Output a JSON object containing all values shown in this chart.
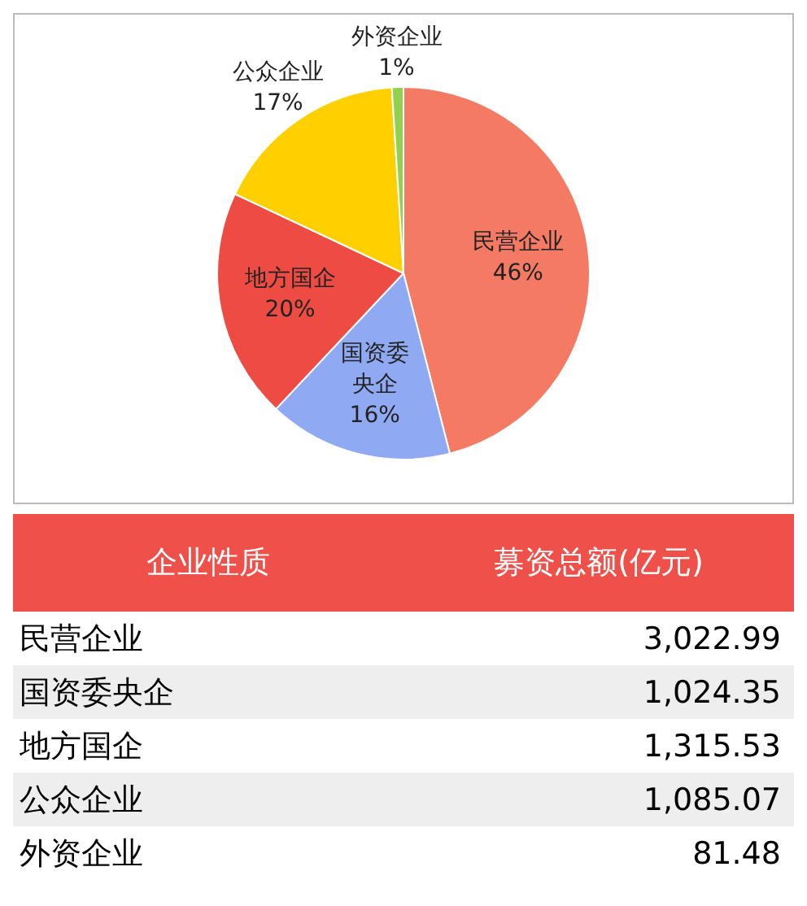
{
  "chart_data": [
    {
      "type": "pie",
      "categories": [
        "民营企业",
        "国资委央企",
        "地方国企",
        "公众企业",
        "外资企业"
      ],
      "values": [
        46,
        16,
        20,
        17,
        1
      ],
      "value_labels": [
        "46%",
        "16%",
        "20%",
        "17%",
        "1%"
      ],
      "colors": [
        "#f47a63",
        "#8faaf2",
        "#ee4b43",
        "#ffd000",
        "#92d050"
      ],
      "data_labels": true,
      "legend": false
    },
    {
      "type": "other",
      "categories": [
        "民营企业",
        "国资委央企",
        "地方国企",
        "公众企业",
        "外资企业"
      ],
      "value_labels": [
        "3,022.99",
        "1,024.35",
        "1,315.53",
        "1,085.07",
        "81.48"
      ],
      "annotations": [
        "企业性质",
        "募资总额(亿元)"
      ]
    }
  ]
}
